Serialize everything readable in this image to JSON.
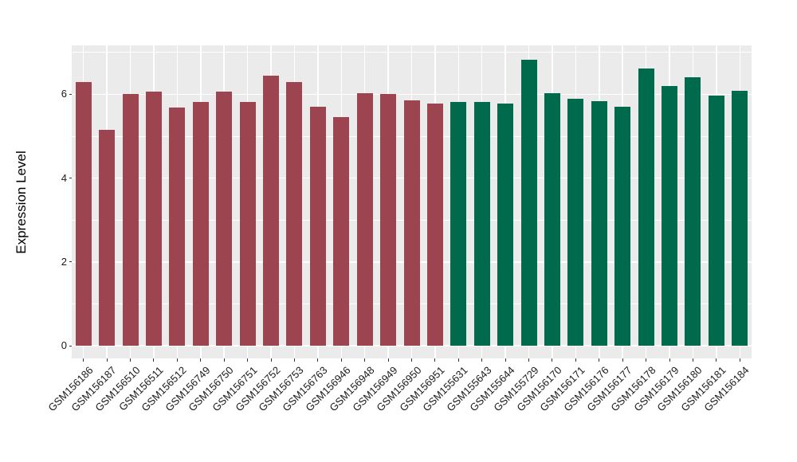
{
  "chart_data": {
    "type": "bar",
    "title": "",
    "xlabel": "",
    "ylabel": "Expression Level",
    "ylim": [
      0,
      7.17
    ],
    "yticks": [
      0,
      2,
      4,
      6
    ],
    "yticks_minor": [
      1,
      3,
      5,
      7
    ],
    "legend": "none",
    "grid": "on",
    "panel_background": "#EBEBEB",
    "gridline_color": "#FFFFFF",
    "axis_text_color": "#1A1A1A",
    "group_colors": {
      "group1": "#9C4551",
      "group2": "#006B4C"
    },
    "bars": [
      {
        "label": "GSM156186",
        "value": 6.29,
        "group": "group1"
      },
      {
        "label": "GSM156187",
        "value": 5.16,
        "group": "group1"
      },
      {
        "label": "GSM156510",
        "value": 6.01,
        "group": "group1"
      },
      {
        "label": "GSM156511",
        "value": 6.07,
        "group": "group1"
      },
      {
        "label": "GSM156512",
        "value": 5.69,
        "group": "group1"
      },
      {
        "label": "GSM156749",
        "value": 5.82,
        "group": "group1"
      },
      {
        "label": "GSM156750",
        "value": 6.07,
        "group": "group1"
      },
      {
        "label": "GSM156751",
        "value": 5.82,
        "group": "group1"
      },
      {
        "label": "GSM156752",
        "value": 6.44,
        "group": "group1"
      },
      {
        "label": "GSM156753",
        "value": 6.3,
        "group": "group1"
      },
      {
        "label": "GSM156763",
        "value": 5.71,
        "group": "group1"
      },
      {
        "label": "GSM156946",
        "value": 5.46,
        "group": "group1"
      },
      {
        "label": "GSM156948",
        "value": 6.03,
        "group": "group1"
      },
      {
        "label": "GSM156949",
        "value": 6.0,
        "group": "group1"
      },
      {
        "label": "GSM156950",
        "value": 5.86,
        "group": "group1"
      },
      {
        "label": "GSM156951",
        "value": 5.77,
        "group": "group1"
      },
      {
        "label": "GSM155631",
        "value": 5.82,
        "group": "group2"
      },
      {
        "label": "GSM155643",
        "value": 5.82,
        "group": "group2"
      },
      {
        "label": "GSM155644",
        "value": 5.77,
        "group": "group2"
      },
      {
        "label": "GSM155729",
        "value": 6.83,
        "group": "group2"
      },
      {
        "label": "GSM156170",
        "value": 6.03,
        "group": "group2"
      },
      {
        "label": "GSM156171",
        "value": 5.9,
        "group": "group2"
      },
      {
        "label": "GSM156176",
        "value": 5.84,
        "group": "group2"
      },
      {
        "label": "GSM156177",
        "value": 5.7,
        "group": "group2"
      },
      {
        "label": "GSM156178",
        "value": 6.62,
        "group": "group2"
      },
      {
        "label": "GSM156179",
        "value": 6.19,
        "group": "group2"
      },
      {
        "label": "GSM156180",
        "value": 6.4,
        "group": "group2"
      },
      {
        "label": "GSM156181",
        "value": 5.97,
        "group": "group2"
      },
      {
        "label": "GSM156184",
        "value": 6.08,
        "group": "group2"
      }
    ]
  }
}
